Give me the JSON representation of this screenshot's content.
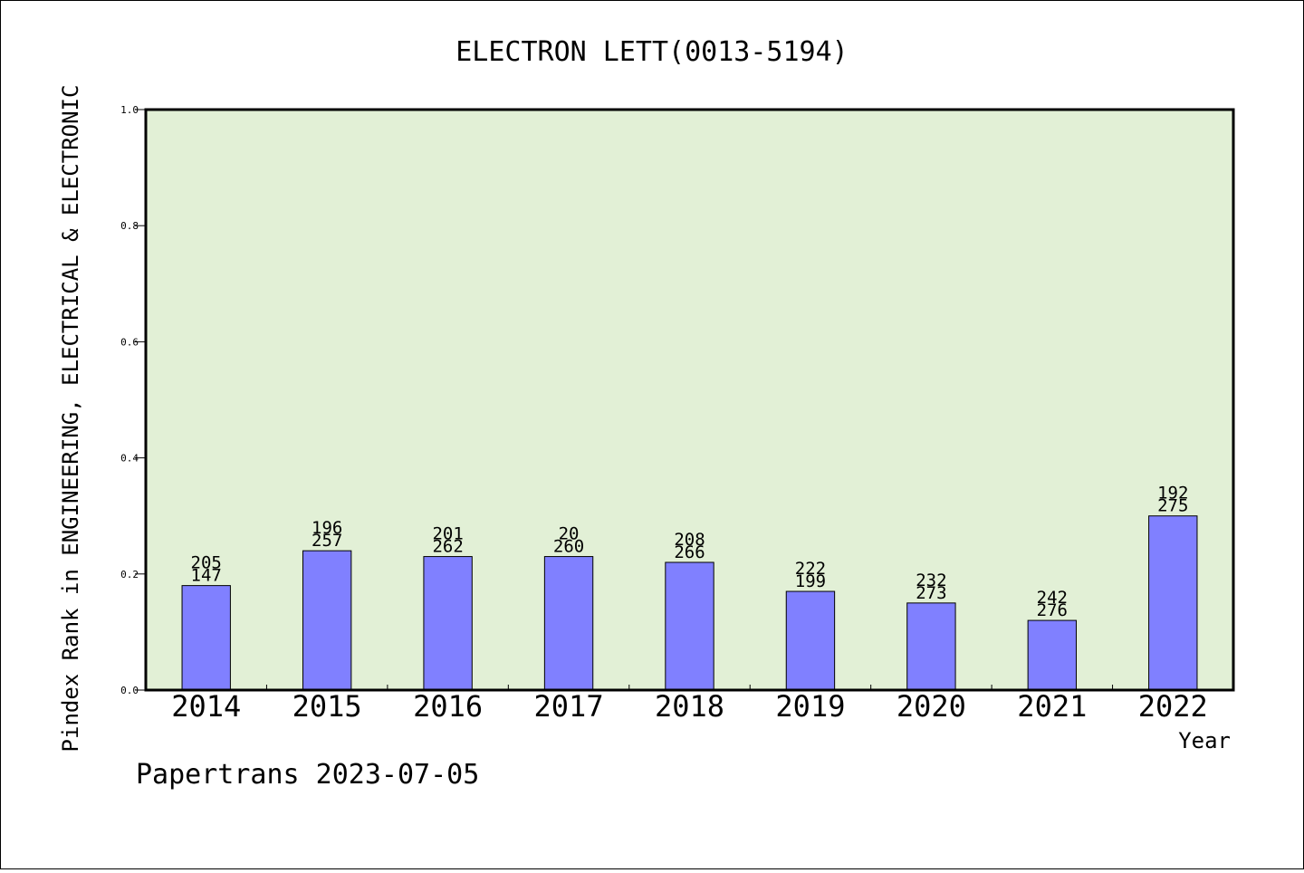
{
  "chart_data": {
    "type": "bar",
    "title": "ELECTRON LETT(0013-5194)",
    "xlabel": "Year",
    "ylabel": "Pindex Rank in ENGINEERING, ELECTRICAL & ELECTRONIC",
    "ylim": [
      0,
      1.0
    ],
    "yticks": [
      "0.0",
      "0.2",
      "0.4",
      "0.6",
      "0.8",
      "1.0"
    ],
    "categories": [
      "2014",
      "2015",
      "2016",
      "2017",
      "2018",
      "2019",
      "2020",
      "2021",
      "2022"
    ],
    "values": [
      0.18,
      0.24,
      0.23,
      0.23,
      0.22,
      0.17,
      0.15,
      0.12,
      0.3
    ],
    "labels_top": [
      "205",
      "196",
      "201",
      "20",
      "208",
      "222",
      "232",
      "242",
      "192"
    ],
    "labels_bottom": [
      "147",
      "257",
      "262",
      "260",
      "266",
      "199",
      "273",
      "276",
      "275"
    ],
    "grid": false,
    "colors": {
      "plot_bg": "#e2f0d6",
      "bar_fill": "#8080ff",
      "bar_stroke": "#000000"
    }
  },
  "footer": {
    "credit": "Papertrans 2023-07-05"
  }
}
